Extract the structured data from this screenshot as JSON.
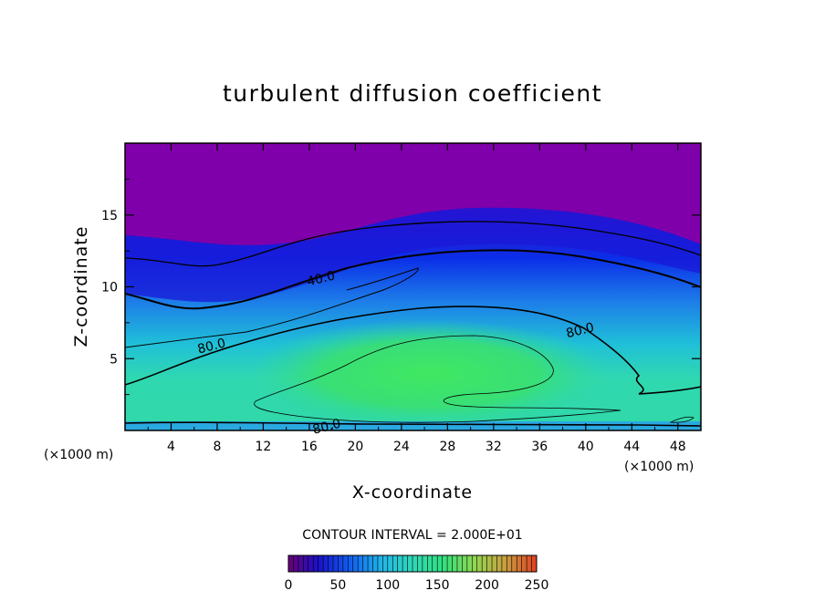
{
  "chart_data": {
    "type": "heatmap",
    "title": "turbulent diffusion coefficient",
    "xlabel": "X-coordinate",
    "ylabel": "Z-coordinate",
    "x_unit_left": "(×1000 m)",
    "x_unit_right": "(×1000 m)",
    "xlim": [
      0,
      50
    ],
    "ylim": [
      0,
      20
    ],
    "x_ticks": [
      "4",
      "8",
      "12",
      "16",
      "20",
      "24",
      "28",
      "32",
      "36",
      "40",
      "44",
      "48"
    ],
    "x_tick_values": [
      4,
      8,
      12,
      16,
      20,
      24,
      28,
      32,
      36,
      40,
      44,
      48
    ],
    "y_ticks": [
      "5",
      "10",
      "15"
    ],
    "y_tick_values": [
      5,
      10,
      15
    ],
    "contour_interval_text": "CONTOUR INTERVAL = 2.000E+01",
    "contour_labels": [
      {
        "text": "40.0",
        "x": 17,
        "z": 10.6
      },
      {
        "text": "80.0",
        "x": 7.5,
        "z": 5.9
      },
      {
        "text": "80.0",
        "x": 39.5,
        "z": 7.0
      },
      {
        "text": "80.0",
        "x": 17.5,
        "z": 0.3
      }
    ],
    "colorbar": {
      "min": 0,
      "max": 250,
      "ticks": [
        "0",
        "50",
        "100",
        "150",
        "200",
        "250"
      ],
      "tick_values": [
        0,
        50,
        100,
        150,
        200,
        250
      ]
    },
    "colors": {
      "background": "#ffffff",
      "top_region": "#7f00aa",
      "peak": "#40e860"
    }
  }
}
